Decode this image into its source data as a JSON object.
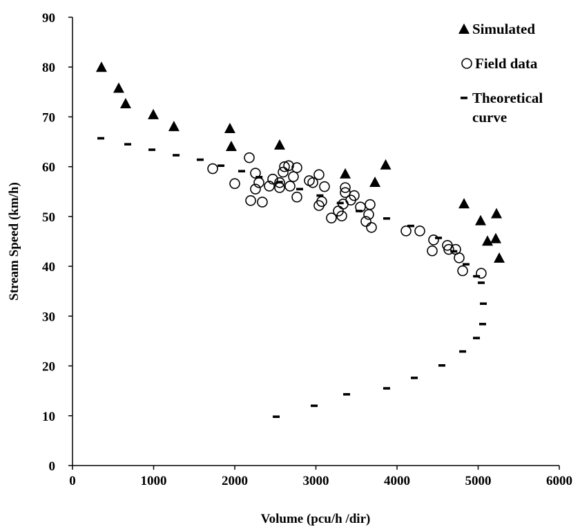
{
  "chart_data": {
    "type": "scatter",
    "x_label": "Volume (pcu/h /dir)",
    "y_label": "Stream Speed (km/h)",
    "xlim": [
      0,
      6000
    ],
    "xticks": [
      0,
      1000,
      2000,
      3000,
      4000,
      5000,
      6000
    ],
    "ylim": [
      0,
      90
    ],
    "yticks": [
      0,
      10,
      20,
      30,
      40,
      50,
      60,
      70,
      80,
      90
    ],
    "series": [
      {
        "name": "Simulated",
        "marker": "triangle",
        "color": "#000000",
        "x": [
          357,
          570,
          655,
          996,
          1250,
          1940,
          1957,
          2553,
          3362,
          3860,
          3728,
          4826,
          5030,
          5226,
          5115,
          5217,
          5260
        ],
        "values": [
          80.0,
          75.8,
          72.7,
          70.5,
          68.1,
          67.7,
          64.1,
          64.4,
          58.6,
          60.4,
          56.9,
          52.6,
          49.2,
          50.6,
          45.1,
          45.6,
          41.7
        ]
      },
      {
        "name": "Field data",
        "marker": "circle",
        "color": "#000000",
        "x": [
          1728,
          2000,
          2179,
          2196,
          2255,
          2255,
          2298,
          2340,
          2426,
          2468,
          2553,
          2553,
          2596,
          2613,
          2664,
          2681,
          2723,
          2766,
          2766,
          2919,
          2962,
          3038,
          3038,
          3072,
          3106,
          3191,
          3277,
          3319,
          3336,
          3362,
          3362,
          3430,
          3472,
          3549,
          3617,
          3651,
          3668,
          3685,
          4111,
          4281,
          4451,
          4434,
          4621,
          4638,
          4723,
          4766,
          4809,
          5038
        ],
        "values": [
          59.6,
          56.6,
          61.8,
          53.2,
          58.7,
          55.5,
          56.8,
          52.9,
          56.1,
          57.5,
          56.8,
          55.8,
          58.9,
          60.0,
          60.2,
          56.1,
          58.0,
          59.8,
          53.9,
          57.2,
          56.8,
          58.4,
          52.2,
          53.0,
          56.0,
          49.7,
          51.1,
          50.1,
          52.5,
          54.8,
          55.8,
          53.3,
          54.2,
          51.9,
          49.0,
          50.4,
          52.4,
          47.8,
          47.1,
          47.1,
          45.3,
          43.1,
          44.2,
          43.4,
          43.4,
          41.7,
          39.1,
          38.6
        ]
      },
      {
        "name": "Theoretical curve",
        "marker": "dash",
        "color": "#000000",
        "x": [
          349,
          681,
          979,
          1277,
          1574,
          1830,
          2085,
          2300,
          2550,
          2800,
          3050,
          3300,
          3532,
          3872,
          4170,
          4511,
          4700,
          4851,
          4980,
          5038,
          5064,
          5055,
          4979,
          4809,
          4553,
          4213,
          3872,
          3379,
          2979,
          2511
        ],
        "values": [
          65.7,
          64.5,
          63.4,
          62.3,
          61.4,
          60.2,
          59.1,
          57.9,
          56.9,
          55.5,
          54.2,
          52.7,
          51.1,
          49.6,
          48.1,
          45.7,
          43.0,
          40.4,
          38.0,
          36.7,
          32.5,
          28.4,
          25.6,
          22.9,
          20.1,
          17.6,
          15.5,
          14.3,
          12.0,
          9.8
        ]
      }
    ]
  }
}
